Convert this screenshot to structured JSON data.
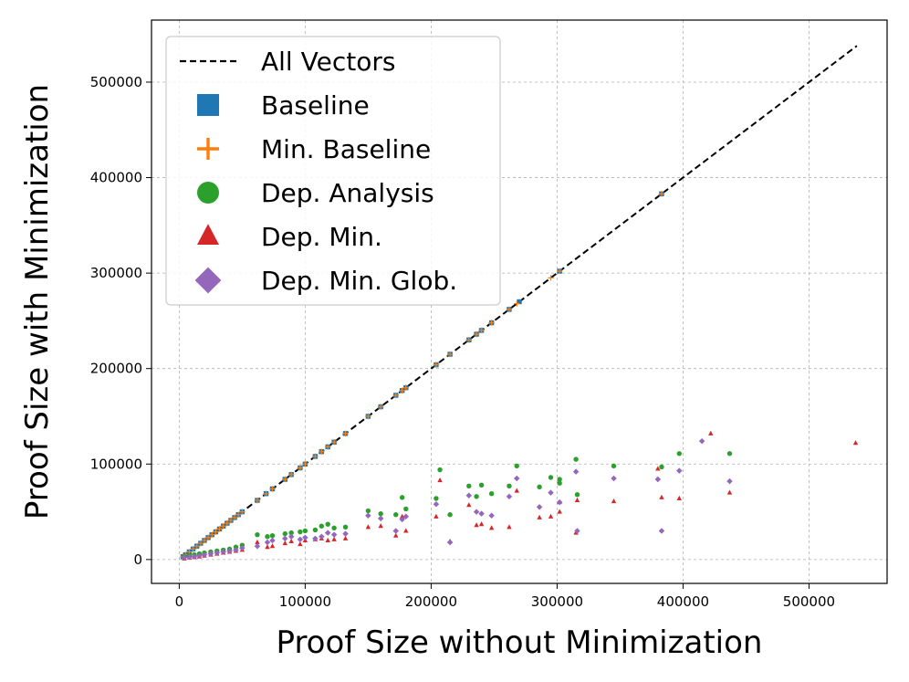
{
  "chart_data": {
    "type": "scatter",
    "title": "",
    "xlabel": "Proof Size without Minimization",
    "ylabel": "Proof Size with Minimization",
    "xlim": [
      -22000,
      562000
    ],
    "ylim": [
      -25000,
      565000
    ],
    "xticks": [
      0,
      100000,
      200000,
      300000,
      400000,
      500000
    ],
    "yticks": [
      0,
      100000,
      200000,
      300000,
      400000,
      500000
    ],
    "xtick_labels": [
      "0",
      "100000",
      "200000",
      "300000",
      "400000",
      "500000"
    ],
    "ytick_labels": [
      "0",
      "100000",
      "200000",
      "300000",
      "400000",
      "500000"
    ],
    "grid": true,
    "legend_position": "upper-left",
    "reference_line": {
      "name": "All Vectors",
      "x": [
        3000,
        538000
      ],
      "y": [
        3000,
        538000
      ],
      "color": "#000000",
      "style": "dashed"
    },
    "series": [
      {
        "name": "Baseline",
        "marker": "square",
        "color": "#1f77b4",
        "points": [
          [
            3000,
            3000
          ],
          [
            5000,
            5000
          ],
          [
            8000,
            8000
          ],
          [
            11000,
            11000
          ],
          [
            14000,
            14000
          ],
          [
            17000,
            17000
          ],
          [
            20000,
            20000
          ],
          [
            23000,
            23000
          ],
          [
            26000,
            26000
          ],
          [
            29000,
            29000
          ],
          [
            32000,
            32000
          ],
          [
            35000,
            35000
          ],
          [
            38000,
            38000
          ],
          [
            41000,
            41000
          ],
          [
            44000,
            44000
          ],
          [
            47000,
            47000
          ],
          [
            50000,
            50000
          ],
          [
            62000,
            62000
          ],
          [
            69000,
            69000
          ],
          [
            74000,
            74000
          ],
          [
            84000,
            84000
          ],
          [
            89000,
            89000
          ],
          [
            96000,
            96000
          ],
          [
            100000,
            100000
          ],
          [
            108000,
            108000
          ],
          [
            113000,
            113000
          ],
          [
            118000,
            118000
          ],
          [
            123000,
            123000
          ],
          [
            132000,
            132000
          ],
          [
            150000,
            150000
          ],
          [
            160000,
            160000
          ],
          [
            172000,
            172000
          ],
          [
            177000,
            177000
          ],
          [
            180000,
            180000
          ],
          [
            204000,
            204000
          ],
          [
            215000,
            215000
          ],
          [
            230000,
            230000
          ],
          [
            236000,
            236000
          ],
          [
            240000,
            240000
          ],
          [
            248000,
            248000
          ],
          [
            262000,
            262000
          ],
          [
            270000,
            270000
          ],
          [
            302000,
            302000
          ],
          [
            383000,
            383000
          ]
        ]
      },
      {
        "name": "Min. Baseline",
        "marker": "plus",
        "color": "#ff7f0e",
        "points": [
          [
            3000,
            3000
          ],
          [
            5000,
            5000
          ],
          [
            8000,
            8000
          ],
          [
            11000,
            11000
          ],
          [
            14000,
            14000
          ],
          [
            17000,
            17000
          ],
          [
            20000,
            20000
          ],
          [
            23000,
            23000
          ],
          [
            26000,
            26000
          ],
          [
            29000,
            29000
          ],
          [
            32000,
            32000
          ],
          [
            35000,
            35000
          ],
          [
            38000,
            38000
          ],
          [
            41000,
            41000
          ],
          [
            44000,
            44000
          ],
          [
            47000,
            47000
          ],
          [
            50000,
            50000
          ],
          [
            62000,
            62000
          ],
          [
            69000,
            69000
          ],
          [
            74000,
            74000
          ],
          [
            84000,
            84000
          ],
          [
            89000,
            89000
          ],
          [
            96000,
            96000
          ],
          [
            100000,
            100000
          ],
          [
            108000,
            108000
          ],
          [
            113000,
            113000
          ],
          [
            118000,
            118000
          ],
          [
            123000,
            123000
          ],
          [
            132000,
            132000
          ],
          [
            150000,
            150000
          ],
          [
            160000,
            160000
          ],
          [
            172000,
            172000
          ],
          [
            177000,
            177000
          ],
          [
            180000,
            180000
          ],
          [
            204000,
            204000
          ],
          [
            215000,
            215000
          ],
          [
            230000,
            230000
          ],
          [
            236000,
            236000
          ],
          [
            240000,
            240000
          ],
          [
            248000,
            248000
          ],
          [
            262000,
            262000
          ],
          [
            268000,
            268000
          ],
          [
            295000,
            295000
          ],
          [
            302000,
            302000
          ],
          [
            383000,
            383000
          ]
        ]
      },
      {
        "name": "Dep. Analysis",
        "marker": "circle",
        "color": "#2ca02c",
        "points": [
          [
            4000,
            3000
          ],
          [
            8000,
            4000
          ],
          [
            12000,
            5000
          ],
          [
            16000,
            6000
          ],
          [
            20000,
            7000
          ],
          [
            25000,
            8000
          ],
          [
            30000,
            9000
          ],
          [
            35000,
            10000
          ],
          [
            40000,
            11000
          ],
          [
            45000,
            13000
          ],
          [
            50000,
            15000
          ],
          [
            62000,
            26000
          ],
          [
            70000,
            24000
          ],
          [
            74000,
            25000
          ],
          [
            84000,
            27000
          ],
          [
            89000,
            28000
          ],
          [
            96000,
            29000
          ],
          [
            100000,
            30000
          ],
          [
            108000,
            31000
          ],
          [
            113000,
            35000
          ],
          [
            118000,
            37000
          ],
          [
            123000,
            33000
          ],
          [
            132000,
            34000
          ],
          [
            150000,
            51000
          ],
          [
            160000,
            48000
          ],
          [
            172000,
            47000
          ],
          [
            177000,
            65000
          ],
          [
            180000,
            53000
          ],
          [
            204000,
            64000
          ],
          [
            207000,
            94000
          ],
          [
            215000,
            47000
          ],
          [
            230000,
            77000
          ],
          [
            236000,
            66000
          ],
          [
            240000,
            78000
          ],
          [
            248000,
            69000
          ],
          [
            262000,
            77000
          ],
          [
            268000,
            98000
          ],
          [
            286000,
            76000
          ],
          [
            295000,
            86000
          ],
          [
            302000,
            84000
          ],
          [
            302000,
            80000
          ],
          [
            315000,
            105000
          ],
          [
            316000,
            68000
          ],
          [
            345000,
            98000
          ],
          [
            383000,
            97000
          ],
          [
            397000,
            111000
          ],
          [
            437000,
            111000
          ]
        ]
      },
      {
        "name": "Dep. Min.",
        "marker": "triangle",
        "color": "#d62728",
        "points": [
          [
            4000,
            1000
          ],
          [
            8000,
            2000
          ],
          [
            12000,
            2500
          ],
          [
            16000,
            3000
          ],
          [
            20000,
            4000
          ],
          [
            25000,
            5000
          ],
          [
            30000,
            6000
          ],
          [
            35000,
            7000
          ],
          [
            40000,
            8000
          ],
          [
            45000,
            9000
          ],
          [
            50000,
            10000
          ],
          [
            62000,
            18000
          ],
          [
            70000,
            13000
          ],
          [
            74000,
            14000
          ],
          [
            84000,
            17000
          ],
          [
            89000,
            19000
          ],
          [
            96000,
            16000
          ],
          [
            100000,
            20000
          ],
          [
            108000,
            21000
          ],
          [
            113000,
            22000
          ],
          [
            118000,
            20000
          ],
          [
            123000,
            21000
          ],
          [
            132000,
            22000
          ],
          [
            150000,
            34000
          ],
          [
            160000,
            35000
          ],
          [
            172000,
            25000
          ],
          [
            177000,
            45000
          ],
          [
            180000,
            30000
          ],
          [
            204000,
            45000
          ],
          [
            207000,
            83000
          ],
          [
            215000,
            19000
          ],
          [
            230000,
            57000
          ],
          [
            236000,
            36000
          ],
          [
            240000,
            37000
          ],
          [
            248000,
            33000
          ],
          [
            262000,
            34000
          ],
          [
            268000,
            72000
          ],
          [
            286000,
            44000
          ],
          [
            295000,
            45000
          ],
          [
            302000,
            50000
          ],
          [
            302000,
            60000
          ],
          [
            315000,
            28000
          ],
          [
            316000,
            62000
          ],
          [
            345000,
            61000
          ],
          [
            380000,
            95000
          ],
          [
            383000,
            65000
          ],
          [
            397000,
            64000
          ],
          [
            422000,
            132000
          ],
          [
            437000,
            70000
          ],
          [
            537000,
            122000
          ]
        ]
      },
      {
        "name": "Dep. Min. Glob.",
        "marker": "diamond",
        "color": "#9467bd",
        "points": [
          [
            4000,
            2000
          ],
          [
            8000,
            2500
          ],
          [
            12000,
            3000
          ],
          [
            16000,
            4000
          ],
          [
            20000,
            5000
          ],
          [
            25000,
            6000
          ],
          [
            30000,
            7000
          ],
          [
            35000,
            8000
          ],
          [
            40000,
            9000
          ],
          [
            45000,
            10000
          ],
          [
            50000,
            12000
          ],
          [
            62000,
            14000
          ],
          [
            70000,
            18000
          ],
          [
            74000,
            20000
          ],
          [
            84000,
            22000
          ],
          [
            89000,
            24000
          ],
          [
            96000,
            21000
          ],
          [
            100000,
            23000
          ],
          [
            108000,
            22000
          ],
          [
            113000,
            24000
          ],
          [
            118000,
            28000
          ],
          [
            123000,
            26000
          ],
          [
            132000,
            27000
          ],
          [
            150000,
            46000
          ],
          [
            160000,
            43000
          ],
          [
            172000,
            30000
          ],
          [
            177000,
            42000
          ],
          [
            180000,
            45000
          ],
          [
            204000,
            58000
          ],
          [
            215000,
            18000
          ],
          [
            230000,
            67000
          ],
          [
            236000,
            50000
          ],
          [
            240000,
            48000
          ],
          [
            248000,
            46000
          ],
          [
            262000,
            66000
          ],
          [
            268000,
            85000
          ],
          [
            286000,
            55000
          ],
          [
            295000,
            70000
          ],
          [
            302000,
            60000
          ],
          [
            315000,
            92000
          ],
          [
            316000,
            30000
          ],
          [
            345000,
            85000
          ],
          [
            380000,
            84000
          ],
          [
            383000,
            30000
          ],
          [
            397000,
            93000
          ],
          [
            415000,
            124000
          ],
          [
            437000,
            82000
          ]
        ]
      }
    ]
  }
}
